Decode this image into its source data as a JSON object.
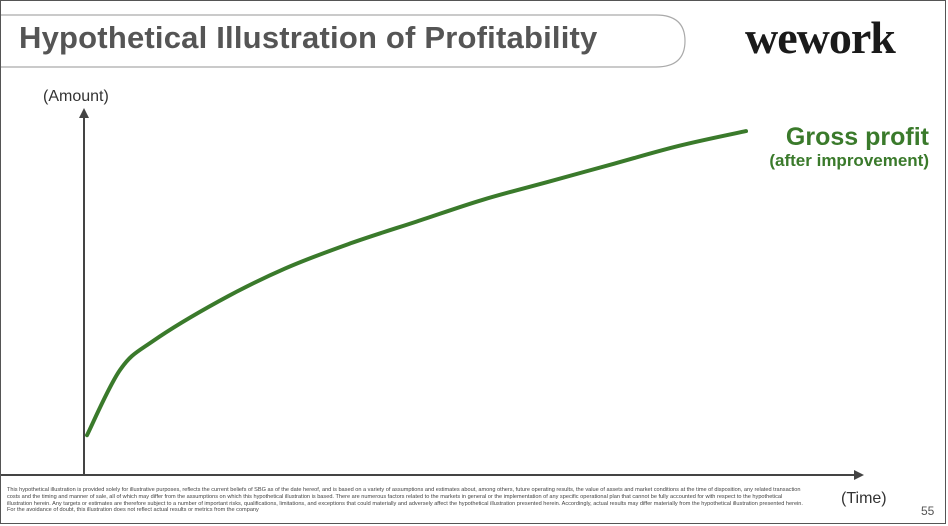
{
  "slide": {
    "title": "Hypothetical Illustration of Profitability",
    "logo": "wework",
    "page_number": "55",
    "disclaimer": "This hypothetical illustration is provided solely for illustrative purposes, reflects the current beliefs of SBG as of the date hereof, and is based on a variety of assumptions and estimates about, among others, future operating results, the value of assets and market conditions at the time of disposition, any related transaction costs and the timing and manner of sale, all of which may differ from the assumptions on which this hypothetical illustration is based. There are numerous factors related to the markets in general or the implementation of any specific operational plan that cannot be fully accounted for with respect to the hypothetical illustration herein. Any targets or estimates are therefore subject to a number of important risks, qualifications, limitations, and exceptions that could materially and adversely affect the hypothetical illustration presented herein. Accordingly, actual results may differ materially from the hypothetical illustration presented herein. For the avoidance of doubt, this illustration does not reflect actual results or metrics from the company"
  },
  "colors": {
    "series": "#3a7a2b",
    "axis": "#444444",
    "title": "#555555"
  },
  "chart_data": {
    "type": "line",
    "ylabel": "(Amount)",
    "xlabel": "(Time)",
    "grid": false,
    "legend": "none",
    "series_label": {
      "name": "Gross profit",
      "subtitle": "(after improvement)"
    },
    "xlim": [
      0,
      1
    ],
    "ylim": [
      0,
      1
    ],
    "series": [
      {
        "name": "Gross profit",
        "x": [
          0,
          0.05,
          0.1,
          0.2,
          0.3,
          0.4,
          0.5,
          0.6,
          0.7,
          0.8,
          0.9,
          1.0
        ],
        "y": [
          0.11,
          0.29,
          0.37,
          0.48,
          0.57,
          0.64,
          0.7,
          0.76,
          0.81,
          0.86,
          0.91,
          0.95
        ]
      }
    ]
  }
}
